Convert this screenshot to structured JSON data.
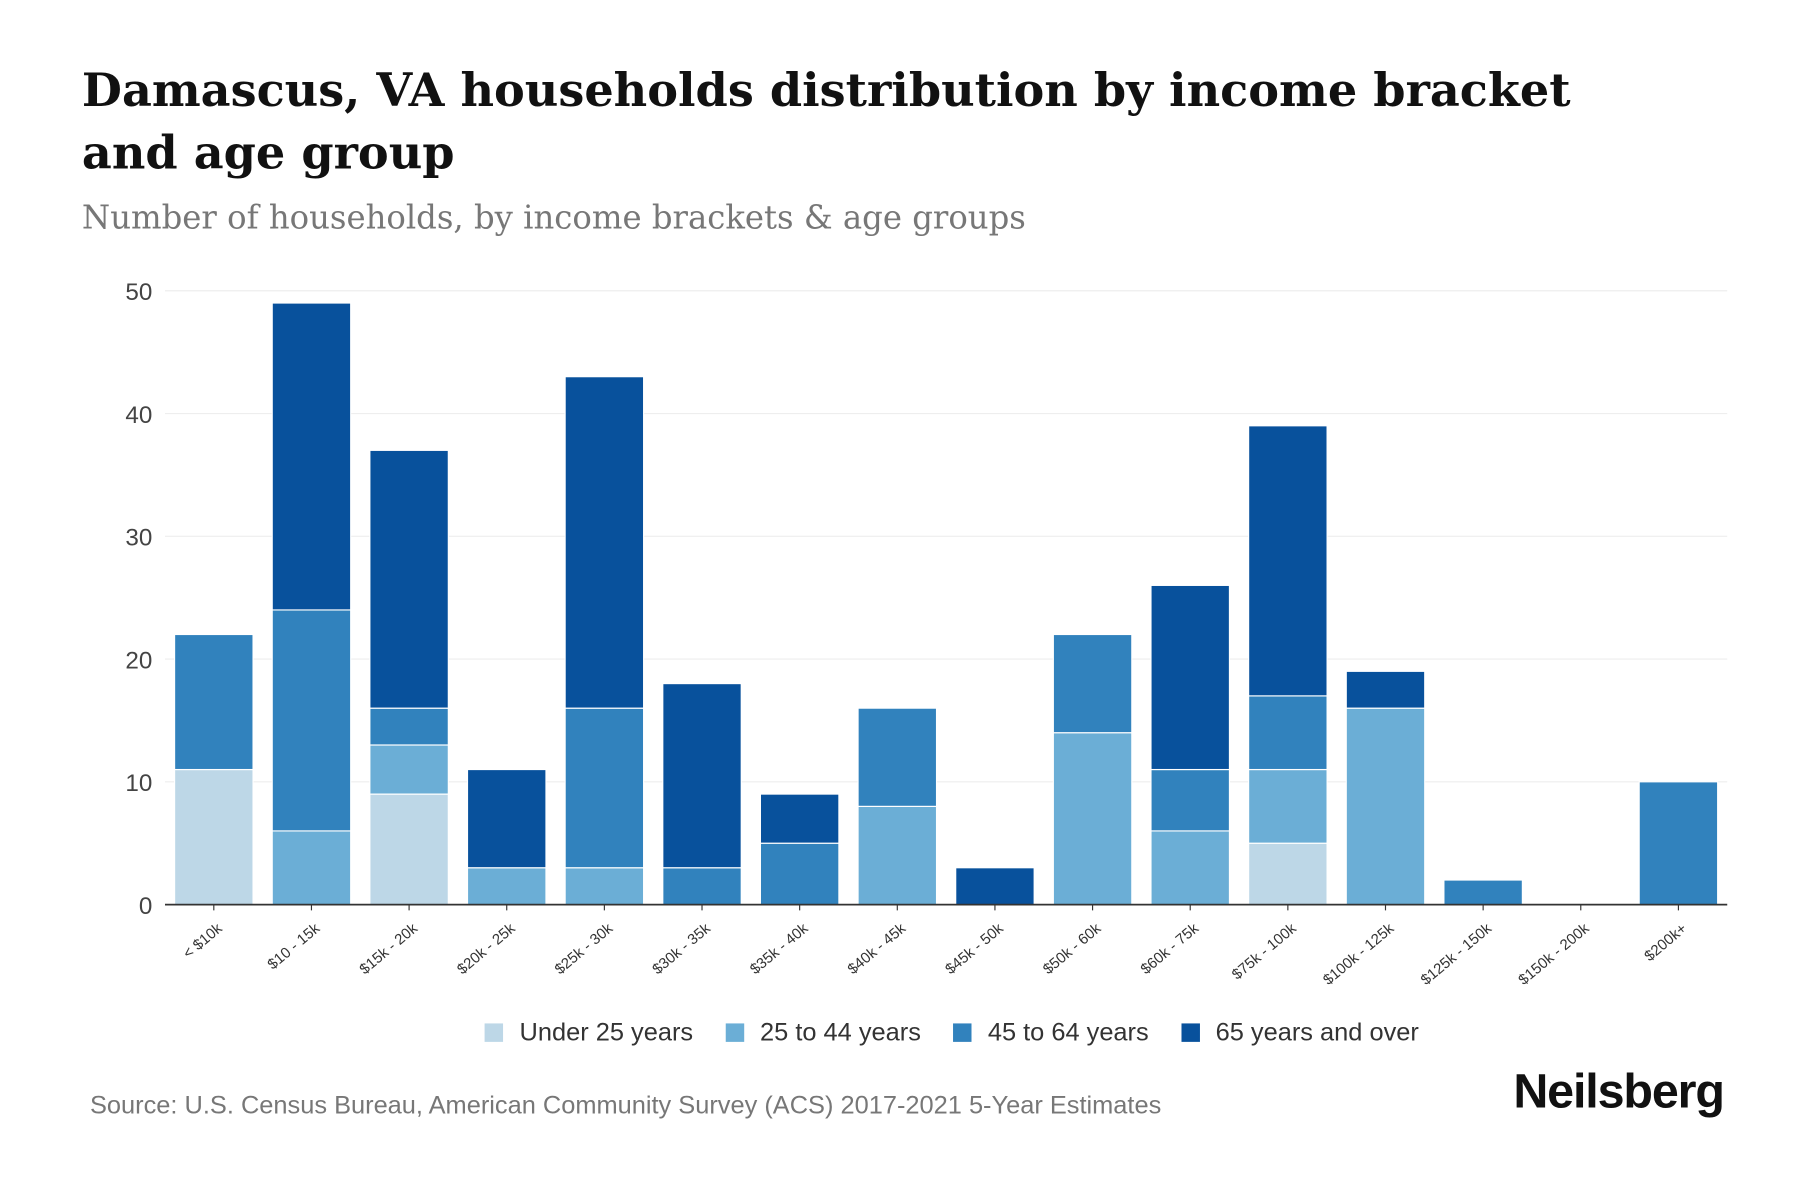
{
  "chart_data": {
    "type": "bar",
    "stacked": true,
    "title": "Damascus, VA households distribution by income bracket and age group",
    "subtitle": "Number of households, by income brackets & age groups",
    "xlabel": "",
    "ylabel": "",
    "ylim": [
      0,
      50
    ],
    "yticks": [
      0,
      10,
      20,
      30,
      40,
      50
    ],
    "categories": [
      "< $10k",
      "$10 - 15k",
      "$15k - 20k",
      "$20k - 25k",
      "$25k - 30k",
      "$30k - 35k",
      "$35k - 40k",
      "$40k - 45k",
      "$45k - 50k",
      "$50k - 60k",
      "$60k - 75k",
      "$75k - 100k",
      "$100k - 125k",
      "$125k - 150k",
      "$150k - 200k",
      "$200k+"
    ],
    "series": [
      {
        "name": "Under 25 years",
        "color": "#bdd7e7",
        "values": [
          11,
          0,
          9,
          0,
          0,
          0,
          0,
          0,
          0,
          0,
          0,
          5,
          0,
          0,
          0,
          0
        ]
      },
      {
        "name": "25 to 44 years",
        "color": "#6baed6",
        "values": [
          0,
          6,
          4,
          3,
          3,
          0,
          0,
          8,
          0,
          14,
          6,
          6,
          16,
          0,
          0,
          0
        ]
      },
      {
        "name": "45 to 64 years",
        "color": "#3182bd",
        "values": [
          11,
          18,
          3,
          0,
          13,
          3,
          5,
          8,
          0,
          8,
          5,
          6,
          0,
          2,
          0,
          10
        ]
      },
      {
        "name": "65 years and over",
        "color": "#08519c",
        "values": [
          0,
          25,
          21,
          8,
          27,
          15,
          4,
          0,
          3,
          0,
          15,
          22,
          3,
          0,
          0,
          0
        ]
      }
    ],
    "legend_position": "bottom",
    "grid": true
  },
  "source": "Source: U.S. Census Bureau, American Community Survey (ACS) 2017-2021 5-Year Estimates",
  "brand": "Neilsberg"
}
